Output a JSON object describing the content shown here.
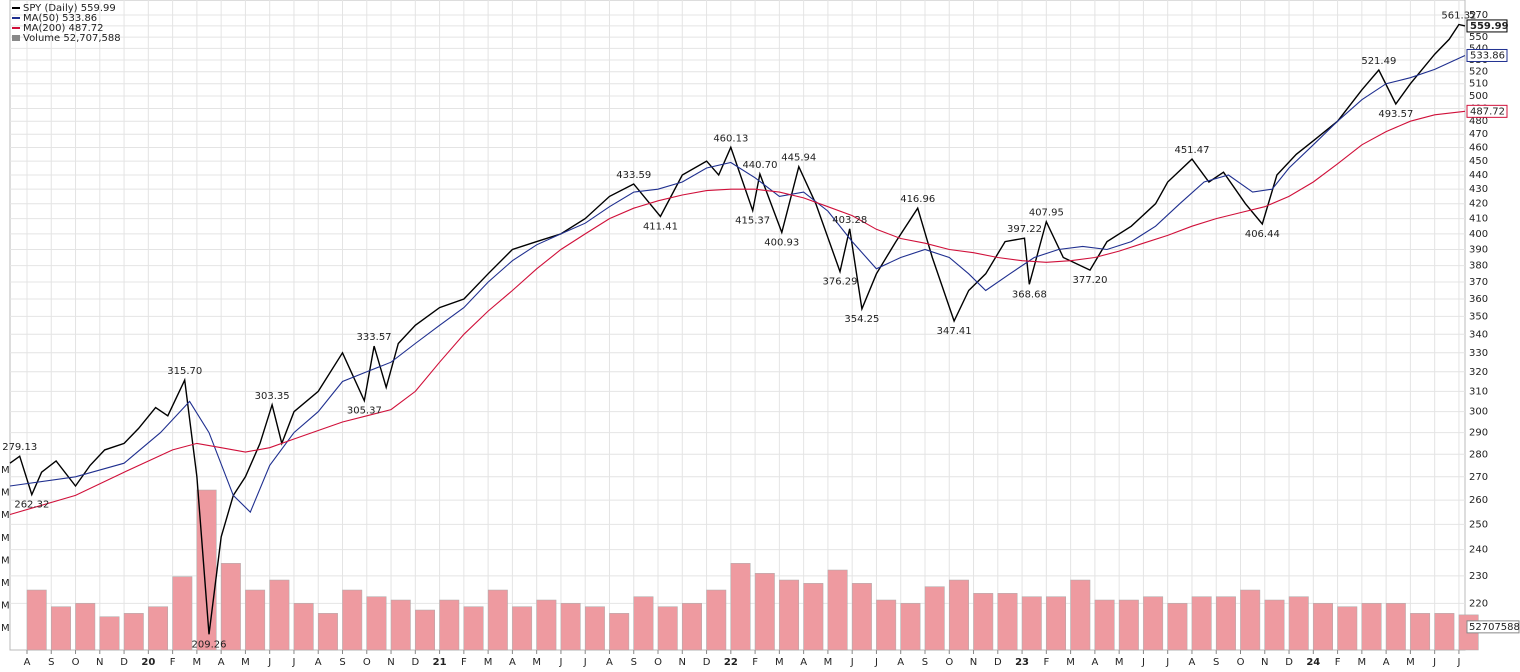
{
  "chart_data": [
    {
      "type": "line",
      "log_scale": true,
      "grid": true,
      "xlim": [
        -0.7,
        59.25
      ],
      "ylim": [
        204,
        584
      ],
      "xticks": [
        {
          "value": 0,
          "label": "A"
        },
        {
          "value": 1,
          "label": "S"
        },
        {
          "value": 2,
          "label": "O"
        },
        {
          "value": 3,
          "label": "N"
        },
        {
          "value": 4,
          "label": "D"
        },
        {
          "value": 5,
          "label": "20"
        },
        {
          "value": 6,
          "label": "F"
        },
        {
          "value": 7,
          "label": "M"
        },
        {
          "value": 8,
          "label": "A"
        },
        {
          "value": 9,
          "label": "M"
        },
        {
          "value": 10,
          "label": "J"
        },
        {
          "value": 11,
          "label": "J"
        },
        {
          "value": 12,
          "label": "A"
        },
        {
          "value": 13,
          "label": "S"
        },
        {
          "value": 14,
          "label": "O"
        },
        {
          "value": 15,
          "label": "N"
        },
        {
          "value": 16,
          "label": "D"
        },
        {
          "value": 17,
          "label": "21"
        },
        {
          "value": 18,
          "label": "F"
        },
        {
          "value": 19,
          "label": "M"
        },
        {
          "value": 20,
          "label": "A"
        },
        {
          "value": 21,
          "label": "M"
        },
        {
          "value": 22,
          "label": "J"
        },
        {
          "value": 23,
          "label": "J"
        },
        {
          "value": 24,
          "label": "A"
        },
        {
          "value": 25,
          "label": "S"
        },
        {
          "value": 26,
          "label": "O"
        },
        {
          "value": 27,
          "label": "N"
        },
        {
          "value": 28,
          "label": "D"
        },
        {
          "value": 29,
          "label": "22"
        },
        {
          "value": 30,
          "label": "F"
        },
        {
          "value": 31,
          "label": "M"
        },
        {
          "value": 32,
          "label": "A"
        },
        {
          "value": 33,
          "label": "M"
        },
        {
          "value": 34,
          "label": "J"
        },
        {
          "value": 35,
          "label": "J"
        },
        {
          "value": 36,
          "label": "A"
        },
        {
          "value": 37,
          "label": "S"
        },
        {
          "value": 38,
          "label": "O"
        },
        {
          "value": 39,
          "label": "N"
        },
        {
          "value": 40,
          "label": "D"
        },
        {
          "value": 41,
          "label": "23"
        },
        {
          "value": 42,
          "label": "F"
        },
        {
          "value": 43,
          "label": "M"
        },
        {
          "value": 44,
          "label": "A"
        },
        {
          "value": 45,
          "label": "M"
        },
        {
          "value": 46,
          "label": "J"
        },
        {
          "value": 47,
          "label": "J"
        },
        {
          "value": 48,
          "label": "A"
        },
        {
          "value": 49,
          "label": "S"
        },
        {
          "value": 50,
          "label": "O"
        },
        {
          "value": 51,
          "label": "N"
        },
        {
          "value": 52,
          "label": "D"
        },
        {
          "value": 53,
          "label": "24"
        },
        {
          "value": 54,
          "label": "F"
        },
        {
          "value": 55,
          "label": "M"
        },
        {
          "value": 56,
          "label": "A"
        },
        {
          "value": 57,
          "label": "M"
        },
        {
          "value": 58,
          "label": "J"
        },
        {
          "value": 59,
          "label": "J"
        }
      ],
      "yticks": [
        220,
        230,
        240,
        250,
        260,
        270,
        280,
        290,
        300,
        310,
        320,
        330,
        340,
        350,
        360,
        370,
        380,
        390,
        400,
        410,
        420,
        430,
        440,
        450,
        460,
        470,
        480,
        490,
        500,
        510,
        520,
        530,
        540,
        550,
        560,
        570
      ],
      "series": [
        {
          "name": "SPY (Daily) 559.99",
          "color": "#000000",
          "last_label": "559.99",
          "x": [
            -0.7,
            -0.3,
            0.2,
            0.6,
            1.2,
            2.0,
            2.6,
            3.2,
            4.0,
            4.6,
            5.3,
            5.8,
            6.5,
            7.0,
            7.5,
            8.0,
            8.5,
            9.0,
            9.6,
            10.1,
            10.5,
            11.0,
            12.0,
            13.0,
            13.9,
            14.3,
            14.8,
            15.3,
            16.0,
            17.0,
            18.0,
            19.0,
            20.0,
            21.0,
            22.0,
            23.0,
            24.0,
            25.0,
            26.1,
            27.0,
            28.0,
            28.5,
            29.0,
            29.9,
            30.2,
            31.1,
            31.8,
            32.5,
            33.5,
            33.9,
            34.4,
            35.0,
            35.8,
            36.7,
            37.3,
            38.2,
            38.8,
            39.5,
            40.3,
            41.1,
            41.3,
            42.0,
            42.7,
            43.8,
            44.5,
            45.5,
            46.5,
            47.0,
            48.0,
            48.7,
            49.3,
            50.2,
            50.9,
            51.5,
            52.3,
            53.0,
            54.0,
            55.0,
            55.7,
            56.4,
            57.0,
            58.0,
            58.6,
            59.0,
            59.25
          ],
          "values": [
            276,
            279.13,
            262.32,
            272,
            277,
            266,
            275,
            282,
            285,
            292,
            302,
            298,
            315.7,
            270,
            209.26,
            245,
            262,
            270,
            285,
            303.35,
            285,
            300,
            310,
            330,
            305.37,
            333.57,
            312,
            335,
            345,
            355,
            360,
            375,
            390,
            395,
            400,
            410,
            425,
            433.59,
            411.41,
            440,
            450,
            440,
            460.13,
            415.37,
            440.7,
            400.93,
            445.94,
            420,
            376.29,
            403.28,
            354.25,
            375,
            395,
            416.96,
            385,
            347.41,
            365,
            375,
            395,
            397.22,
            368.68,
            407.95,
            385,
            377.2,
            395,
            405,
            420,
            435,
            451.47,
            435,
            442,
            420,
            406.44,
            440,
            455,
            465,
            480,
            505,
            521.49,
            493.57,
            510,
            535,
            548,
            561.32,
            559.99
          ]
        },
        {
          "name": "MA(50) 533.86",
          "color": "#1f2f8f",
          "last_label": "533.86",
          "x": [
            -0.7,
            2,
            4,
            5.5,
            6.7,
            7.5,
            8.5,
            9.2,
            10,
            11,
            12,
            13,
            14,
            15,
            16,
            17,
            18,
            19,
            20,
            21,
            22,
            23,
            24,
            25,
            26,
            27,
            28,
            29,
            30,
            31,
            32,
            33,
            34,
            35,
            36,
            37,
            38,
            38.8,
            39.5,
            40.5,
            41.5,
            42.5,
            43.5,
            44.5,
            45.5,
            46.5,
            47.5,
            48.5,
            49.5,
            50.5,
            51.3,
            52,
            53,
            54,
            55,
            56,
            57,
            58,
            59.25
          ],
          "values": [
            266,
            270,
            276,
            290,
            305,
            290,
            262,
            255,
            275,
            290,
            300,
            315,
            320,
            325,
            335,
            345,
            355,
            370,
            383,
            393,
            400,
            407,
            418,
            428,
            430,
            435,
            445,
            449,
            438,
            425,
            428,
            415,
            395,
            378,
            385,
            390,
            385,
            375,
            365,
            375,
            385,
            390,
            392,
            390,
            395,
            405,
            420,
            435,
            440,
            428,
            430,
            445,
            462,
            480,
            497,
            510,
            515,
            522,
            533.86
          ]
        },
        {
          "name": "MA(200) 487.72",
          "color": "#d0103a",
          "last_label": "487.72",
          "x": [
            -0.7,
            2,
            4,
            6,
            7,
            8,
            9,
            10,
            11,
            12,
            13,
            14,
            15,
            16,
            17,
            18,
            19,
            20,
            21,
            22,
            23,
            24,
            25,
            26,
            27,
            28,
            29,
            30,
            31,
            32,
            33,
            34,
            35,
            36,
            37,
            38,
            39,
            40,
            41,
            42,
            43,
            44,
            45,
            46,
            47,
            48,
            49,
            50,
            51,
            52,
            53,
            54,
            55,
            56,
            57,
            58,
            59.25
          ],
          "values": [
            254,
            262,
            272,
            282,
            285,
            283,
            281,
            283,
            287,
            291,
            295,
            298,
            301,
            310,
            325,
            340,
            353,
            365,
            378,
            390,
            400,
            410,
            417,
            422,
            426,
            429,
            430,
            430,
            428,
            424,
            418,
            412,
            403,
            397,
            394,
            390,
            388,
            385,
            383,
            382,
            383,
            385,
            389,
            394,
            399,
            405,
            410,
            414,
            418,
            425,
            435,
            448,
            462,
            472,
            480,
            485,
            487.72
          ]
        }
      ],
      "annotations": [
        {
          "x": -0.3,
          "value": 279.13,
          "label": "279.13"
        },
        {
          "x": 0.2,
          "value": 262.32,
          "label": "262.32"
        },
        {
          "x": 6.5,
          "value": 315.7,
          "label": "315.70"
        },
        {
          "x": 7.5,
          "value": 209.26,
          "label": "209.26"
        },
        {
          "x": 10.1,
          "value": 303.35,
          "label": "303.35"
        },
        {
          "x": 13.9,
          "value": 305.37,
          "label": "305.37"
        },
        {
          "x": 14.3,
          "value": 333.57,
          "label": "333.57"
        },
        {
          "x": 25.0,
          "value": 433.59,
          "label": "433.59"
        },
        {
          "x": 26.1,
          "value": 411.41,
          "label": "411.41"
        },
        {
          "x": 29.0,
          "value": 460.13,
          "label": "460.13"
        },
        {
          "x": 29.9,
          "value": 415.37,
          "label": "415.37"
        },
        {
          "x": 30.2,
          "value": 440.7,
          "label": "440.70"
        },
        {
          "x": 31.1,
          "value": 400.93,
          "label": "400.93"
        },
        {
          "x": 31.8,
          "value": 445.94,
          "label": "445.94"
        },
        {
          "x": 33.5,
          "value": 376.29,
          "label": "376.29"
        },
        {
          "x": 33.9,
          "value": 403.28,
          "label": "403.28"
        },
        {
          "x": 34.4,
          "value": 354.25,
          "label": "354.25"
        },
        {
          "x": 36.7,
          "value": 416.96,
          "label": "416.96"
        },
        {
          "x": 38.2,
          "value": 347.41,
          "label": "347.41"
        },
        {
          "x": 41.1,
          "value": 397.22,
          "label": "397.22"
        },
        {
          "x": 41.3,
          "value": 368.68,
          "label": "368.68"
        },
        {
          "x": 42.0,
          "value": 407.95,
          "label": "407.95"
        },
        {
          "x": 43.8,
          "value": 377.2,
          "label": "377.20"
        },
        {
          "x": 48.0,
          "value": 451.47,
          "label": "451.47"
        },
        {
          "x": 50.9,
          "value": 406.44,
          "label": "406.44"
        },
        {
          "x": 55.7,
          "value": 521.49,
          "label": "521.49"
        },
        {
          "x": 56.4,
          "value": 493.57,
          "label": "493.57"
        },
        {
          "x": 59.0,
          "value": 561.32,
          "label": "561.32"
        }
      ]
    },
    {
      "type": "bar",
      "name": "Volume 52,707,588",
      "color": "#ee9aa0",
      "last_label": "52707588",
      "ylim": [
        0,
        330000000
      ],
      "axis_labels": [
        "M",
        "M",
        "M",
        "M",
        "M",
        "M",
        "M",
        "M"
      ],
      "x": [
        0,
        1,
        2,
        3,
        4,
        5,
        6,
        7,
        8,
        9,
        10,
        11,
        12,
        13,
        14,
        15,
        16,
        17,
        18,
        19,
        20,
        21,
        22,
        23,
        24,
        25,
        26,
        27,
        28,
        29,
        30,
        31,
        32,
        33,
        34,
        35,
        36,
        37,
        38,
        39,
        40,
        41,
        42,
        43,
        44,
        45,
        46,
        47,
        48,
        49,
        50,
        51,
        52,
        53,
        54,
        55,
        56,
        57,
        58,
        59
      ],
      "values": [
        90000000,
        65000000,
        70000000,
        50000000,
        55000000,
        65000000,
        110000000,
        240000000,
        130000000,
        90000000,
        105000000,
        70000000,
        55000000,
        90000000,
        80000000,
        75000000,
        60000000,
        75000000,
        65000000,
        90000000,
        65000000,
        75000000,
        70000000,
        65000000,
        55000000,
        80000000,
        65000000,
        70000000,
        90000000,
        130000000,
        115000000,
        105000000,
        100000000,
        120000000,
        100000000,
        75000000,
        70000000,
        95000000,
        105000000,
        85000000,
        85000000,
        80000000,
        80000000,
        105000000,
        75000000,
        75000000,
        80000000,
        70000000,
        80000000,
        80000000,
        90000000,
        75000000,
        80000000,
        70000000,
        65000000,
        70000000,
        70000000,
        55000000,
        55000000,
        52707588
      ]
    }
  ]
}
